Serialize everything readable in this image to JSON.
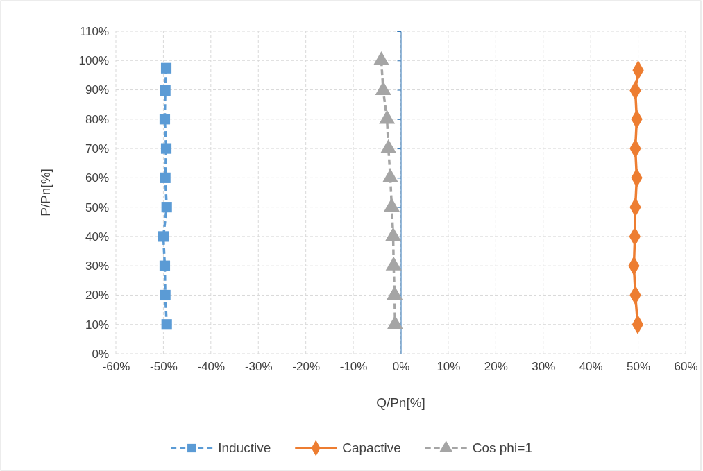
{
  "chart_data": {
    "type": "line",
    "xlabel": "Q/Pn[%]",
    "ylabel": "P/Pn[%]",
    "xlim": [
      -60,
      60
    ],
    "xticks": [
      {
        "value": -60,
        "label": "-60%"
      },
      {
        "value": -50,
        "label": "-50%"
      },
      {
        "value": -40,
        "label": "-40%"
      },
      {
        "value": -30,
        "label": "-30%"
      },
      {
        "value": -20,
        "label": "-20%"
      },
      {
        "value": -10,
        "label": "-10%"
      },
      {
        "value": 0,
        "label": "0%"
      },
      {
        "value": 10,
        "label": "10%"
      },
      {
        "value": 20,
        "label": "20%"
      },
      {
        "value": 30,
        "label": "30%"
      },
      {
        "value": 40,
        "label": "40%"
      },
      {
        "value": 50,
        "label": "50%"
      },
      {
        "value": 60,
        "label": "60%"
      }
    ],
    "ylim": [
      0,
      110
    ],
    "yticks": [
      {
        "value": 0,
        "label": "0%"
      },
      {
        "value": 10,
        "label": "10%"
      },
      {
        "value": 20,
        "label": "20%"
      },
      {
        "value": 30,
        "label": "30%"
      },
      {
        "value": 40,
        "label": "40%"
      },
      {
        "value": 50,
        "label": "50%"
      },
      {
        "value": 60,
        "label": "60%"
      },
      {
        "value": 70,
        "label": "70%"
      },
      {
        "value": 80,
        "label": "80%"
      },
      {
        "value": 90,
        "label": "90%"
      },
      {
        "value": 100,
        "label": "100%"
      },
      {
        "value": 110,
        "label": "110%"
      }
    ],
    "grid": true,
    "legend": "bottom",
    "ref_lines": [
      {
        "axis": "x",
        "value": 0,
        "color": "#2e75b6"
      }
    ],
    "series": [
      {
        "name": "Inductive",
        "color": "#5b9bd5",
        "marker": "square",
        "line_style": "dashed",
        "x": [
          -49.4,
          -49.6,
          -49.7,
          -49.4,
          -49.6,
          -49.3,
          -50,
          -49.7,
          -49.6,
          -49.3
        ],
        "values": [
          97.4,
          89.8,
          80,
          70,
          60,
          50,
          40,
          30,
          20,
          10
        ]
      },
      {
        "name": "Capactive",
        "color": "#ed7d31",
        "marker": "diamond",
        "line_style": "solid",
        "x": [
          50,
          49.4,
          49.7,
          49.4,
          49.7,
          49.4,
          49.3,
          49.1,
          49.4,
          49.9
        ],
        "values": [
          96.7,
          89.8,
          80,
          70,
          60,
          50,
          40,
          30,
          20,
          10
        ]
      },
      {
        "name": "Cos phi=1",
        "color": "#a5a5a5",
        "marker": "triangle",
        "line_style": "dashed",
        "x": [
          -4.1,
          -3.7,
          -2.9,
          -2.6,
          -2.2,
          -1.9,
          -1.6,
          -1.5,
          -1.3,
          -1.2
        ],
        "values": [
          100,
          89.8,
          80,
          70,
          60,
          50,
          40,
          30,
          20,
          10
        ]
      }
    ]
  }
}
